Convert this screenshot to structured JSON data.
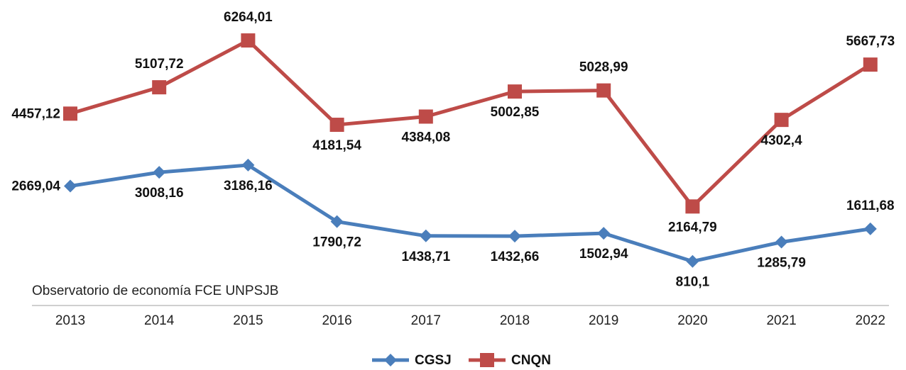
{
  "chart_data": {
    "type": "line",
    "source": "Observatorio de economía FCE UNPSJB",
    "categories": [
      "2013",
      "2014",
      "2015",
      "2016",
      "2017",
      "2018",
      "2019",
      "2020",
      "2021",
      "2022"
    ],
    "ylim": [
      0,
      7000
    ],
    "series": [
      {
        "name": "CGSJ",
        "color": "#4a7ebb",
        "marker": "diamond",
        "values": [
          2669.04,
          3008.16,
          3186.16,
          1790.72,
          1438.71,
          1432.66,
          1502.94,
          810.1,
          1285.79,
          1611.68
        ],
        "value_labels": [
          "2669,04",
          "3008,16",
          "3186,16",
          "1790,72",
          "1438,71",
          "1432,66",
          "1502,94",
          "810,1",
          "1285,79",
          "1611,68"
        ]
      },
      {
        "name": "CNQN",
        "color": "#be4b48",
        "marker": "square",
        "values": [
          4457.12,
          5107.72,
          6264.01,
          4181.54,
          4384.08,
          5002.85,
          5028.99,
          2164.79,
          4302.4,
          5667.73
        ],
        "value_labels": [
          "4457,12",
          "5107,72",
          "6264,01",
          "4181,54",
          "4384,08",
          "5002,85",
          "5028,99",
          "2164,79",
          "4302,4",
          "5667,73"
        ]
      }
    ]
  }
}
